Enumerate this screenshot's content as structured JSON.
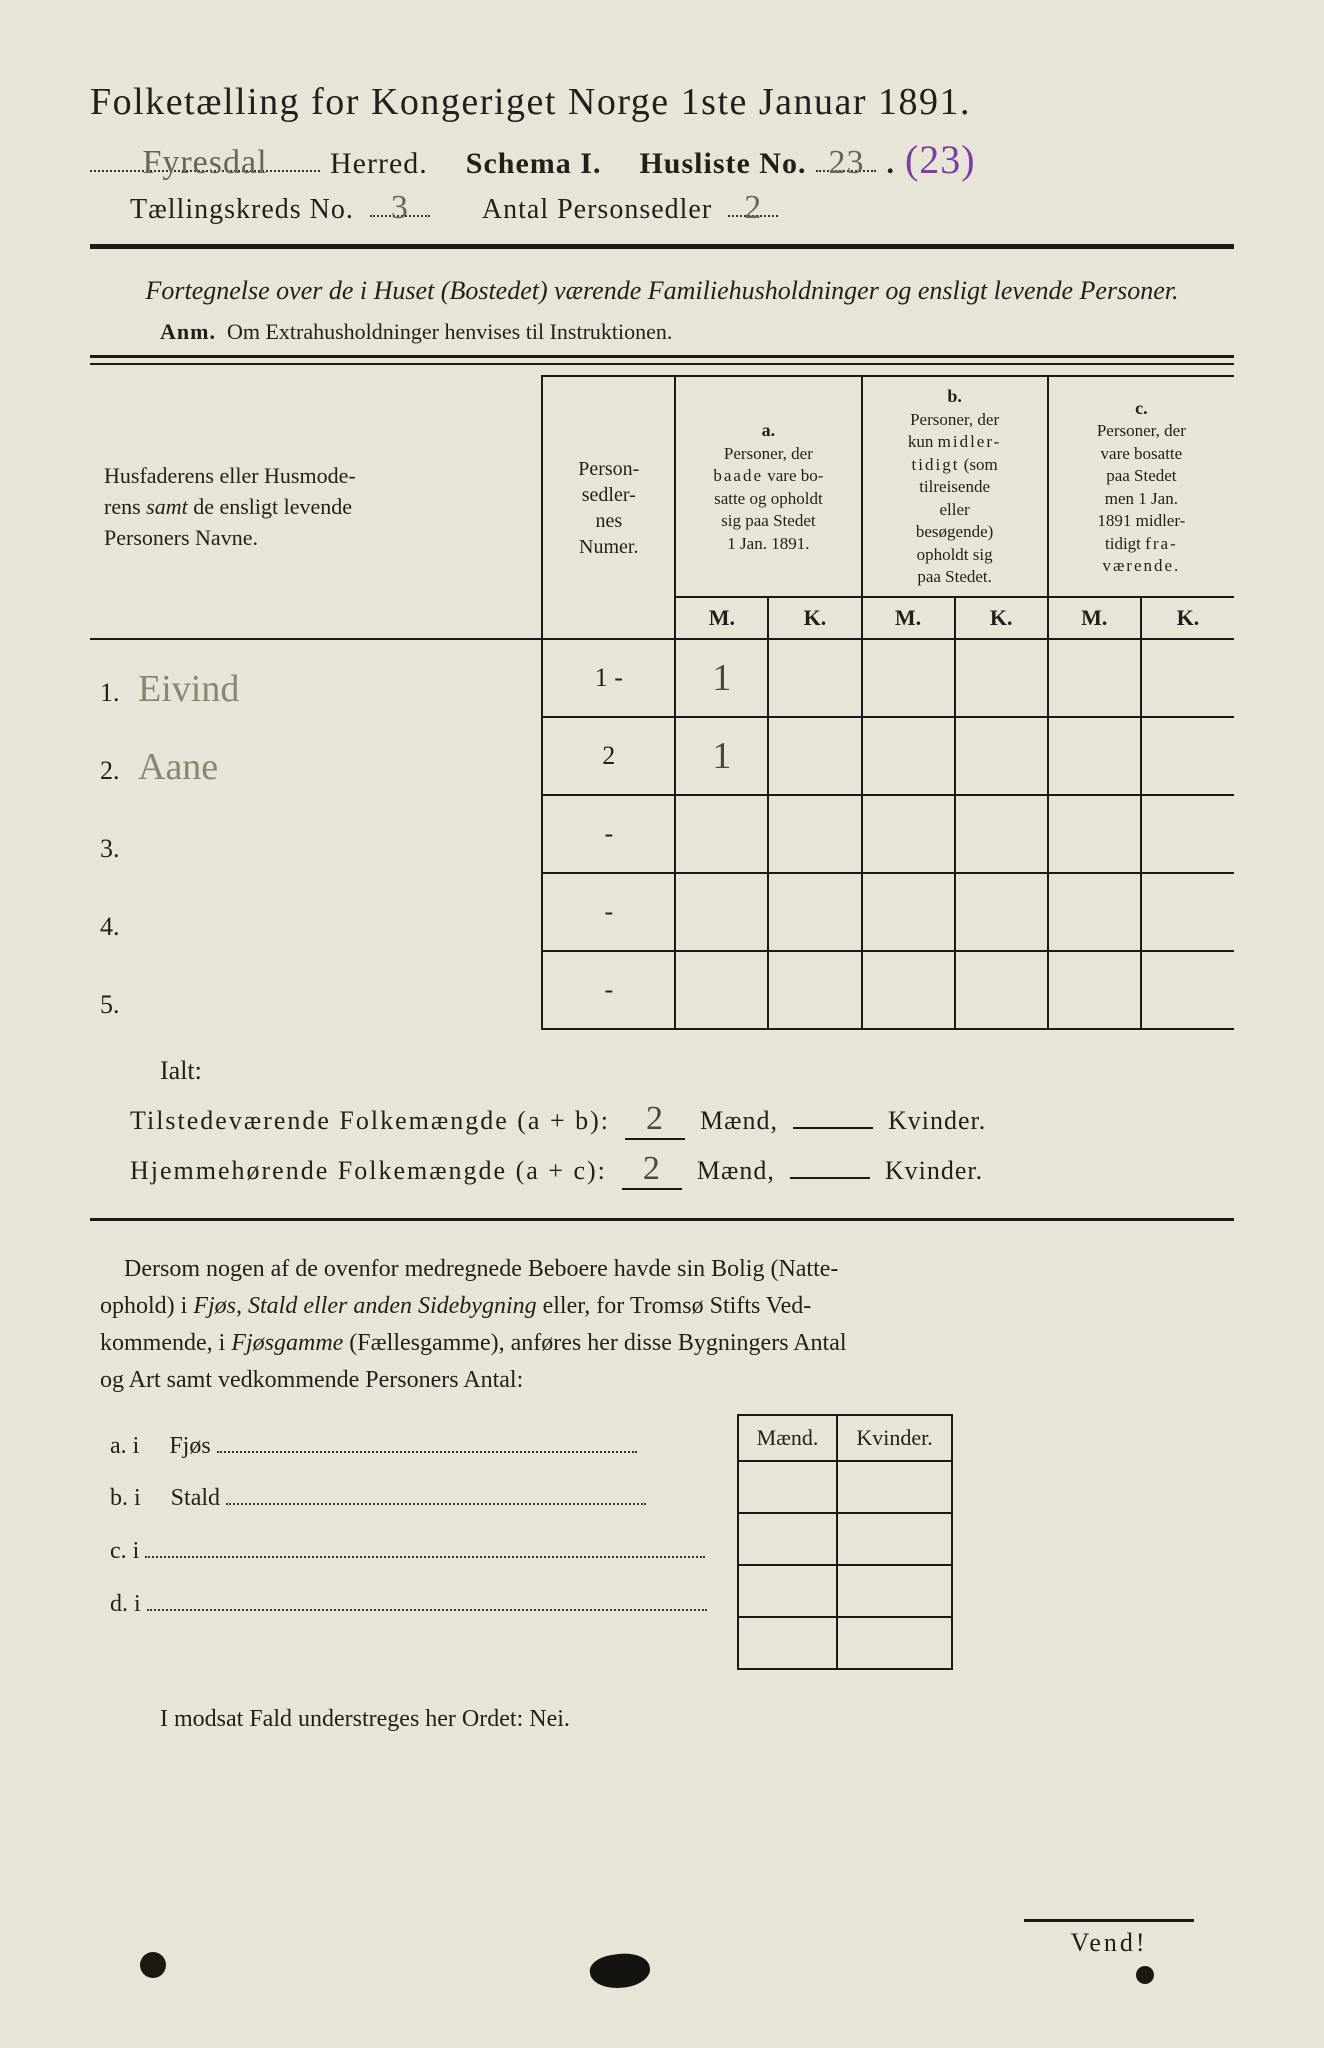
{
  "title": "Folketælling for Kongeriget Norge 1ste Januar 1891.",
  "line2": {
    "herred_hw": "Fyresdal",
    "herred_label": "Herred.",
    "schema_label": "Schema I.",
    "husliste_label": "Husliste No.",
    "husliste_hw": "23",
    "husliste_extra": "(23)"
  },
  "line3": {
    "kreds_label": "Tællingskreds No.",
    "kreds_hw": "3",
    "antal_label": "Antal Personsedler",
    "antal_hw": "2"
  },
  "subtitle": "Fortegnelse over de i Huset (Bostedet) værende Familiehusholdninger og ensligt levende Personer.",
  "anm_label": "Anm.",
  "anm_text": "Om Extrahusholdninger henvises til Instruktionen.",
  "table": {
    "name_header": "Husfaderens eller Husmoderens samt de ensligt levende Personers Navne.",
    "num_header": "Person-sedler-nes Numer.",
    "group_a_label": "a.",
    "group_a_text": "Personer, der baade vare bosatte og opholdt sig paa Stedet 1 Jan. 1891.",
    "group_b_label": "b.",
    "group_b_text": "Personer, der kun midlertidigt (som tilreisende eller besøgende) opholdt sig paa Stedet.",
    "group_c_label": "c.",
    "group_c_text": "Personer, der vare bosatte paa Stedet men 1 Jan. 1891 midlertidigt fraværende.",
    "m": "M.",
    "k": "K.",
    "rows": [
      {
        "idx": "1.",
        "name": "Eivind",
        "num": "1 -",
        "a_m": "1",
        "a_k": "",
        "b_m": "",
        "b_k": "",
        "c_m": "",
        "c_k": ""
      },
      {
        "idx": "2.",
        "name": "Aane",
        "num": "2",
        "a_m": "1",
        "a_k": "",
        "b_m": "",
        "b_k": "",
        "c_m": "",
        "c_k": ""
      },
      {
        "idx": "3.",
        "name": "",
        "num": "-",
        "a_m": "",
        "a_k": "",
        "b_m": "",
        "b_k": "",
        "c_m": "",
        "c_k": ""
      },
      {
        "idx": "4.",
        "name": "",
        "num": "-",
        "a_m": "",
        "a_k": "",
        "b_m": "",
        "b_k": "",
        "c_m": "",
        "c_k": ""
      },
      {
        "idx": "5.",
        "name": "",
        "num": "-",
        "a_m": "",
        "a_k": "",
        "b_m": "",
        "b_k": "",
        "c_m": "",
        "c_k": ""
      }
    ]
  },
  "ialt": "Ialt:",
  "sum1": {
    "label": "Tilstedeværende Folkemængde (a + b):",
    "m": "2",
    "k": "",
    "maend": "Mænd,",
    "kvinder": "Kvinder."
  },
  "sum2": {
    "label": "Hjemmehørende Folkemængde (a + c):",
    "m": "2",
    "k": "",
    "maend": "Mænd,",
    "kvinder": "Kvinder."
  },
  "para": "Dersom nogen af de ovenfor medregnede Beboere havde sin Bolig (Natteophold) i Fjøs, Stald eller anden Sidebygning eller, for Tromsø Stifts Vedkommende, i Fjøsgamme (Fællesgamme), anføres her disse Bygningers Antal og Art samt vedkommende Personers Antal:",
  "abcd": {
    "a": "a.  i",
    "a_word": "Fjøs",
    "b": "b.  i",
    "b_word": "Stald",
    "c": "c.  i",
    "d": "d.  i"
  },
  "mk_small": {
    "m": "Mænd.",
    "k": "Kvinder."
  },
  "modsat": "I modsat Fald understreges her Ordet: Nei.",
  "vend": "Vend!"
}
